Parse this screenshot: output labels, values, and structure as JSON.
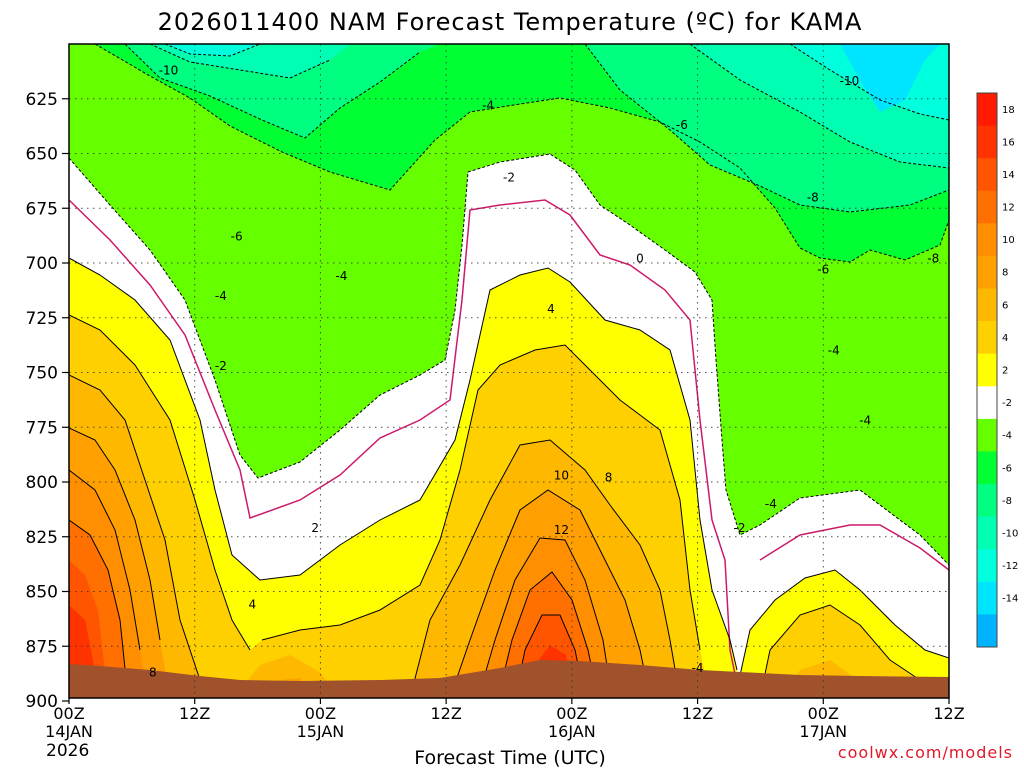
{
  "chart_data": {
    "type": "heatmap",
    "title": "2026011400 NAM Forecast Temperature (ºC) for KAMA",
    "xlabel": "Forecast Time (UTC)",
    "ylabel": "",
    "credit": "coolwx.com/models",
    "x_ticks": [
      "00Z",
      "12Z",
      "00Z",
      "12Z",
      "00Z",
      "12Z",
      "00Z",
      "12Z"
    ],
    "x_dates": [
      "14JAN",
      "",
      "15JAN",
      "",
      "16JAN",
      "",
      "17JAN",
      ""
    ],
    "x_year": "2026",
    "x_hours": [
      0,
      12,
      24,
      36,
      48,
      60,
      72,
      84
    ],
    "xlim": [
      0,
      84
    ],
    "y_ticks": [
      625,
      650,
      675,
      700,
      725,
      750,
      775,
      800,
      825,
      850,
      875,
      900
    ],
    "ylim": [
      900,
      600
    ],
    "colorbar_labels": [
      "18",
      "16",
      "14",
      "12",
      "10",
      "8",
      "6",
      "4",
      "2",
      "-2",
      "-4",
      "-6",
      "-8",
      "-10",
      "-12",
      "-14"
    ],
    "colorbar_bins": [
      {
        "lo": 18,
        "hi": 20,
        "color": "#ff1a00"
      },
      {
        "lo": 16,
        "hi": 18,
        "color": "#ff3300"
      },
      {
        "lo": 14,
        "hi": 16,
        "color": "#ff5500"
      },
      {
        "lo": 12,
        "hi": 14,
        "color": "#ff7000"
      },
      {
        "lo": 10,
        "hi": 12,
        "color": "#ff8f00"
      },
      {
        "lo": 8,
        "hi": 10,
        "color": "#ffa000"
      },
      {
        "lo": 6,
        "hi": 8,
        "color": "#ffb800"
      },
      {
        "lo": 4,
        "hi": 6,
        "color": "#ffd000"
      },
      {
        "lo": 2,
        "hi": 4,
        "color": "#ffff00"
      },
      {
        "lo": -2,
        "hi": 2,
        "color": "#ffffff"
      },
      {
        "lo": -4,
        "hi": -2,
        "color": "#66ff00"
      },
      {
        "lo": -6,
        "hi": -4,
        "color": "#00ff33"
      },
      {
        "lo": -8,
        "hi": -6,
        "color": "#00ff80"
      },
      {
        "lo": -10,
        "hi": -8,
        "color": "#00ffb3"
      },
      {
        "lo": -12,
        "hi": -10,
        "color": "#00ffdd"
      },
      {
        "lo": -14,
        "hi": -12,
        "color": "#00e5ff"
      },
      {
        "lo": -16,
        "hi": -14,
        "color": "#00b3ff"
      }
    ],
    "ground_color": "#a0522d",
    "zero_line_color": "#cc1a6a",
    "grid": true,
    "contour_labels": [
      {
        "text": "-10",
        "t": 9.5,
        "p": 612
      },
      {
        "text": "-10",
        "t": 74.5,
        "p": 617
      },
      {
        "text": "-4",
        "t": 40,
        "p": 628
      },
      {
        "text": "-6",
        "t": 58.5,
        "p": 637
      },
      {
        "text": "-2",
        "t": 42,
        "p": 661
      },
      {
        "text": "-8",
        "t": 71,
        "p": 670
      },
      {
        "text": "-6",
        "t": 16,
        "p": 688
      },
      {
        "text": "0",
        "t": 54.5,
        "p": 698
      },
      {
        "text": "-8",
        "t": 82.5,
        "p": 698
      },
      {
        "text": "-4",
        "t": 26,
        "p": 706
      },
      {
        "text": "-6",
        "t": 72,
        "p": 703
      },
      {
        "text": "-4",
        "t": 14.5,
        "p": 715
      },
      {
        "text": "4",
        "t": 46,
        "p": 721
      },
      {
        "text": "-4",
        "t": 73,
        "p": 740
      },
      {
        "text": "-2",
        "t": 14.5,
        "p": 747
      },
      {
        "text": "-4",
        "t": 76,
        "p": 772
      },
      {
        "text": "10",
        "t": 47,
        "p": 797
      },
      {
        "text": "8",
        "t": 51.5,
        "p": 798
      },
      {
        "text": "-4",
        "t": 67,
        "p": 810
      },
      {
        "text": "2",
        "t": 23.5,
        "p": 821
      },
      {
        "text": "-2",
        "t": 64,
        "p": 821
      },
      {
        "text": "12",
        "t": 47,
        "p": 822
      },
      {
        "text": "4",
        "t": 17.5,
        "p": 856
      },
      {
        "text": "-4",
        "t": 60,
        "p": 885
      },
      {
        "text": "8",
        "t": 8,
        "p": 887
      }
    ]
  }
}
